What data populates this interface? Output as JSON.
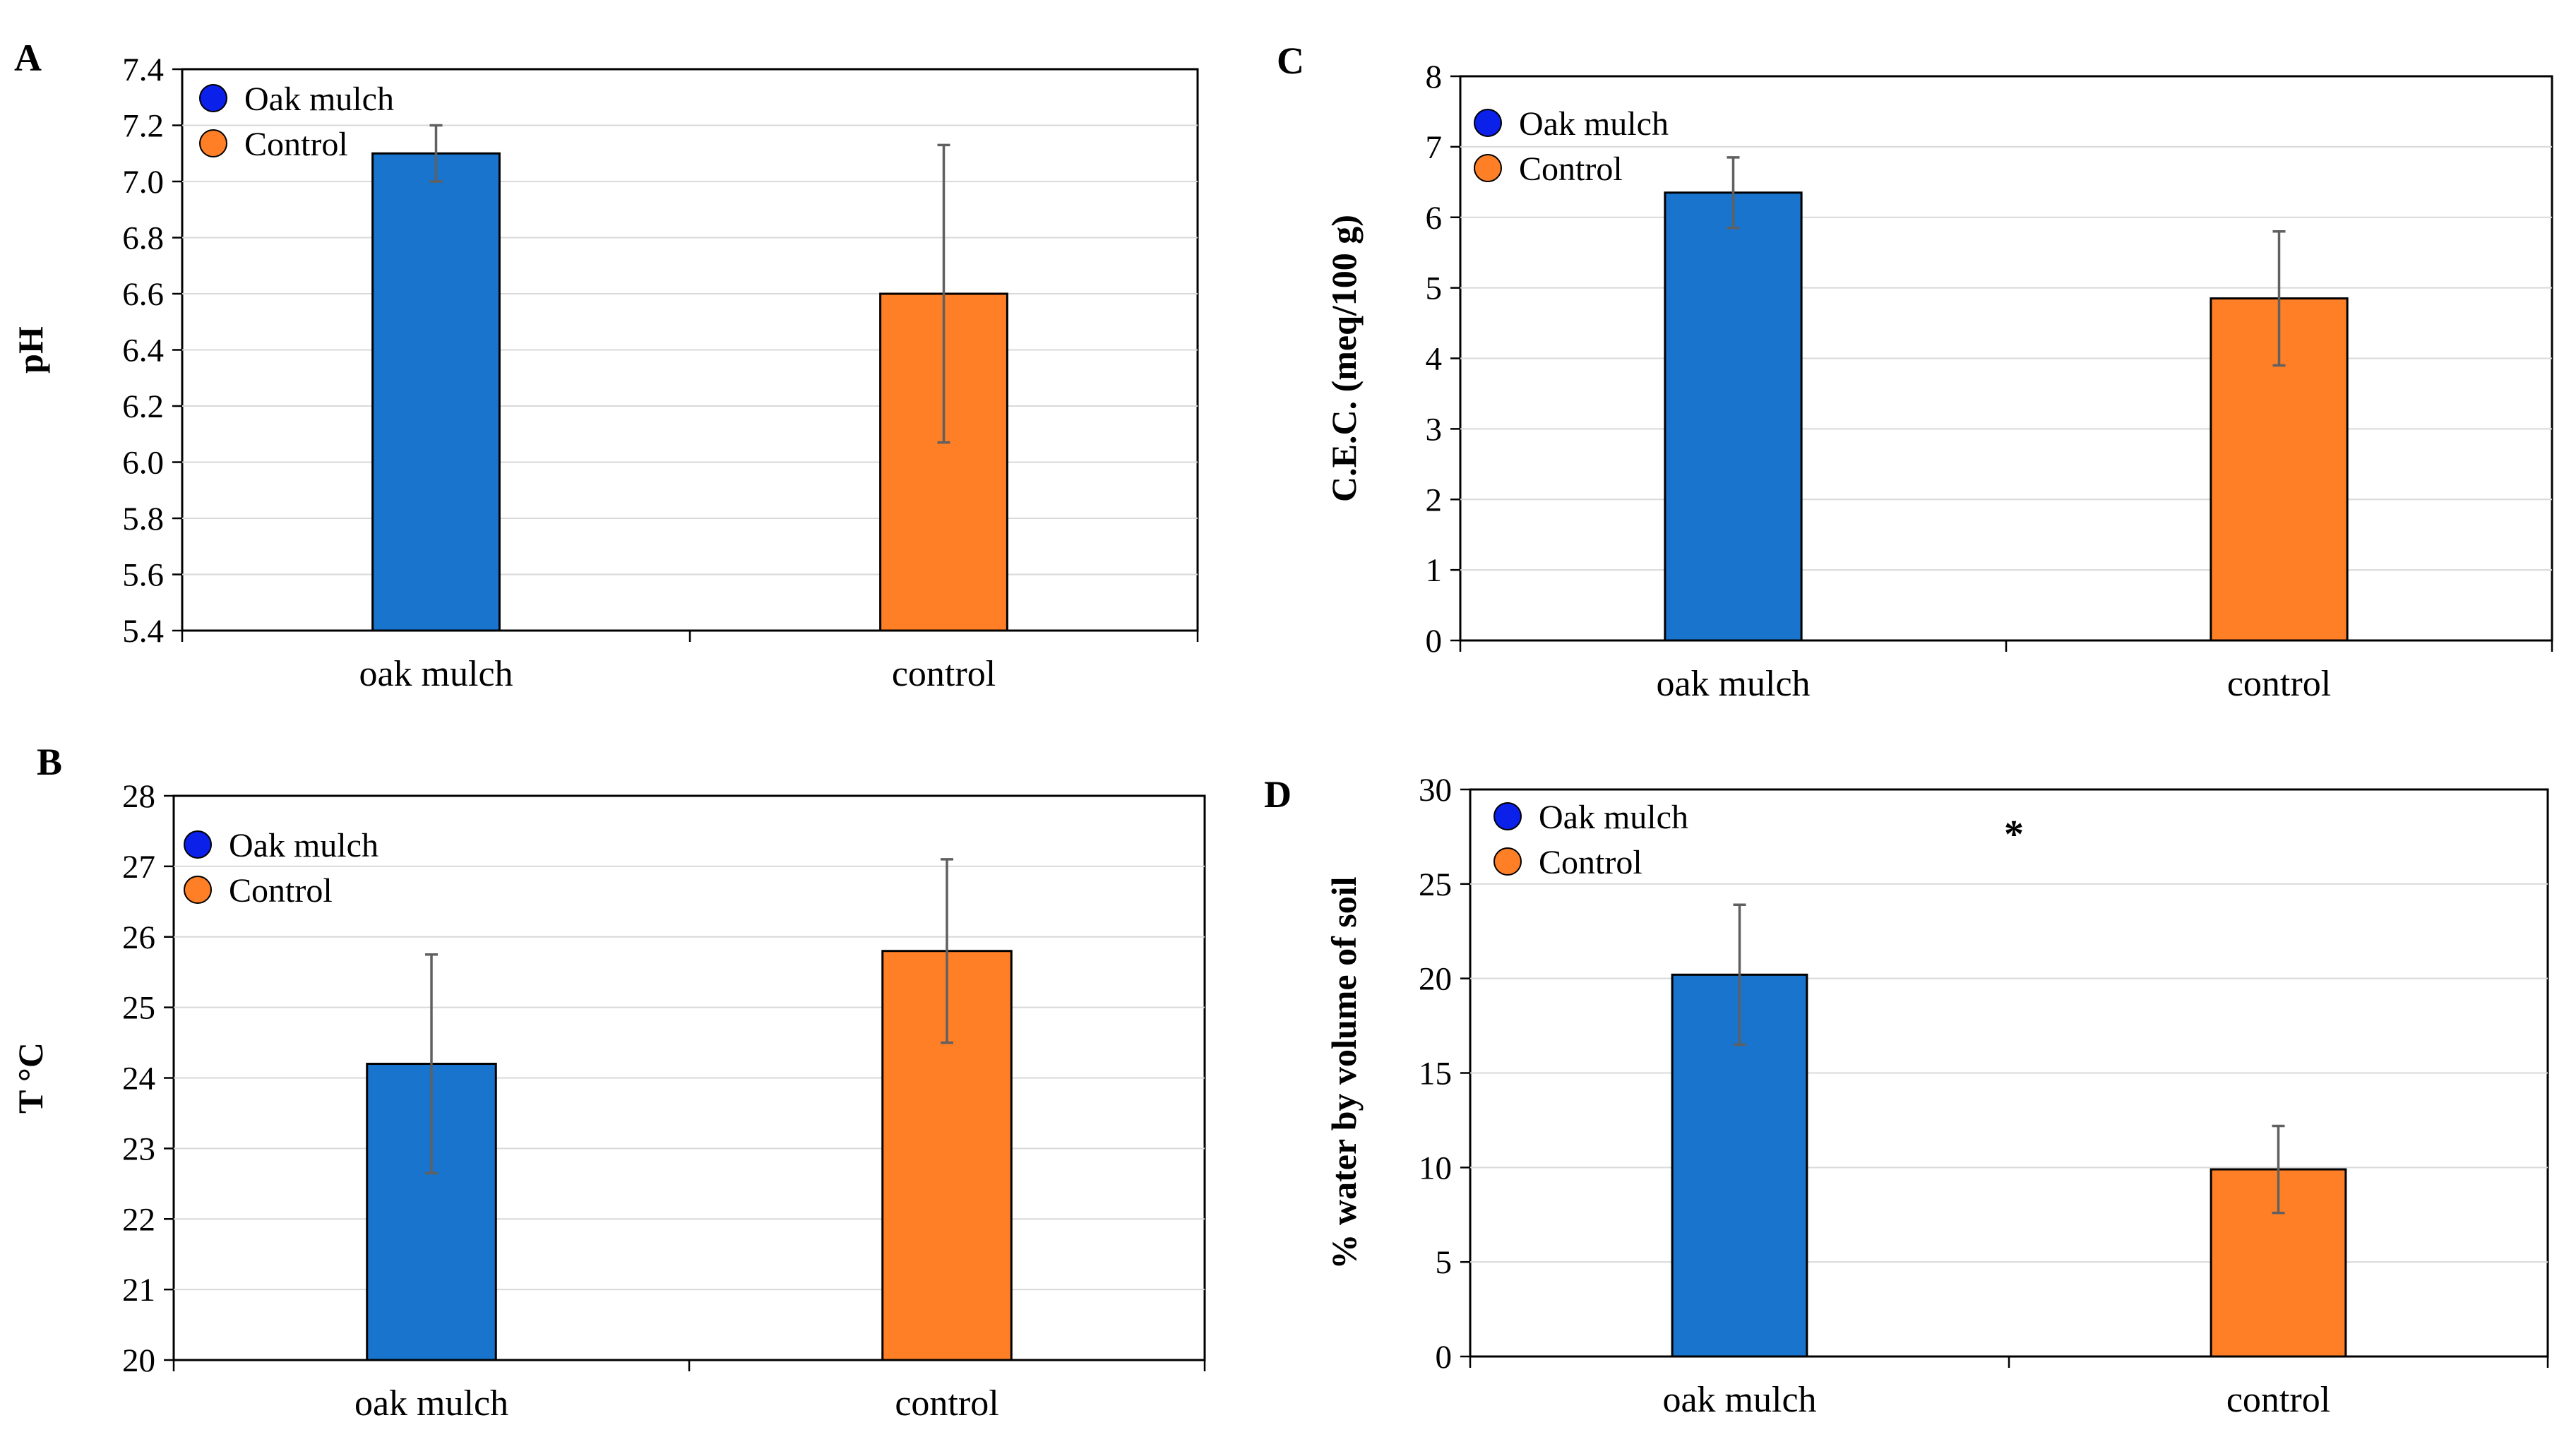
{
  "figure": {
    "colors": {
      "oak": "#1874cd",
      "control": "#ff7f27",
      "legend_oak": "#0b20e8",
      "legend_control": "#ff7f27",
      "grid": "#d9d9d9",
      "error": "#606060"
    }
  },
  "chart_data": [
    {
      "panel": "A",
      "type": "bar",
      "title": "",
      "xlabel": "",
      "ylabel": "pH",
      "categories": [
        "oak mulch",
        "control"
      ],
      "series": [
        {
          "name": "Oak mulch",
          "values": [
            7.1,
            6.6
          ],
          "errors": [
            0.1,
            0.53
          ]
        }
      ],
      "legend": [
        "Oak mulch",
        "Control"
      ],
      "ylim": [
        5.4,
        7.4
      ],
      "yticks": [
        "5.4",
        "5.6",
        "5.8",
        "6.0",
        "6.2",
        "6.4",
        "6.6",
        "6.8",
        "7.0",
        "7.2",
        "7.4"
      ],
      "annotation": "",
      "grid": true
    },
    {
      "panel": "B",
      "type": "bar",
      "title": "",
      "xlabel": "",
      "ylabel": "T °C",
      "categories": [
        "oak mulch",
        "control"
      ],
      "series": [
        {
          "name": "Oak mulch",
          "values": [
            24.2,
            25.8
          ],
          "errors": [
            1.55,
            1.3
          ]
        }
      ],
      "legend": [
        "Oak mulch",
        "Control"
      ],
      "ylim": [
        20,
        28
      ],
      "yticks": [
        "20",
        "21",
        "22",
        "23",
        "24",
        "25",
        "26",
        "27",
        "28"
      ],
      "annotation": "",
      "grid": true
    },
    {
      "panel": "C",
      "type": "bar",
      "title": "",
      "xlabel": "",
      "ylabel": "C.E.C. (meq/100 g)",
      "categories": [
        "oak mulch",
        "control"
      ],
      "series": [
        {
          "name": "Oak mulch",
          "values": [
            6.35,
            4.85
          ],
          "errors": [
            0.5,
            0.95
          ]
        }
      ],
      "legend": [
        "Oak mulch",
        "Control"
      ],
      "ylim": [
        0,
        8
      ],
      "yticks": [
        "0",
        "1",
        "2",
        "3",
        "4",
        "5",
        "6",
        "7",
        "8"
      ],
      "annotation": "",
      "grid": true
    },
    {
      "panel": "D",
      "type": "bar",
      "title": "",
      "xlabel": "",
      "ylabel": "% water  by volume of soil",
      "categories": [
        "oak mulch",
        "control"
      ],
      "series": [
        {
          "name": "Oak mulch",
          "values": [
            20.2,
            9.9
          ],
          "errors": [
            3.7,
            2.3
          ]
        }
      ],
      "legend": [
        "Oak mulch",
        "Control"
      ],
      "ylim": [
        0,
        30
      ],
      "yticks": [
        "0",
        "5",
        "10",
        "15",
        "20",
        "25",
        "30"
      ],
      "annotation": "*",
      "grid": true
    }
  ]
}
